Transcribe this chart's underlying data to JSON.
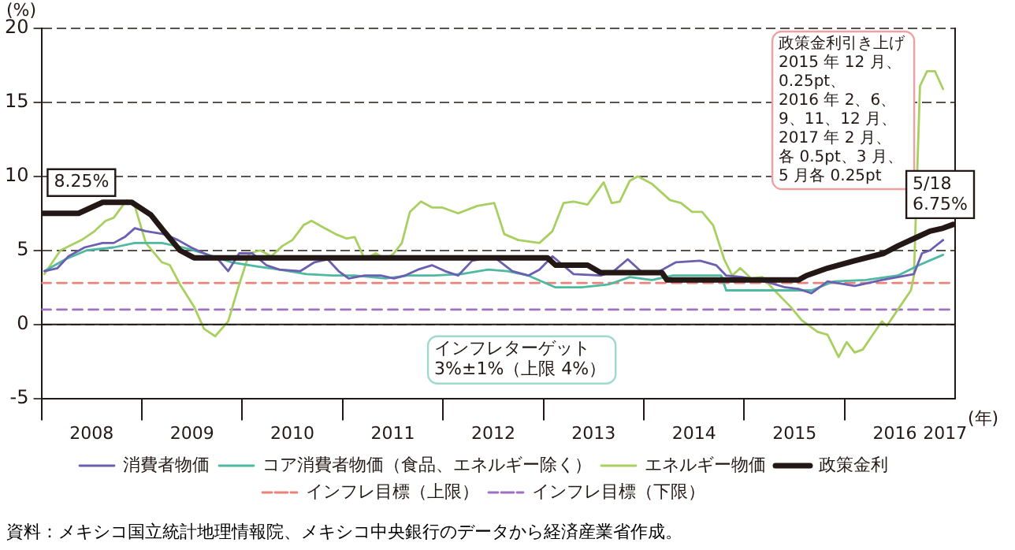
{
  "chart_data": {
    "type": "line",
    "ylabel": "(%)",
    "xlabel": "(年)",
    "xlim": [
      2008,
      2017.1
    ],
    "ylim": [
      -5,
      20
    ],
    "yticks": [
      -5,
      0,
      5,
      10,
      15,
      20
    ],
    "xticks": [
      {
        "value": 2008,
        "label": null
      },
      {
        "value": 2008.5,
        "label": "2008"
      },
      {
        "value": 2009,
        "label": null
      },
      {
        "value": 2009.5,
        "label": "2009"
      },
      {
        "value": 2010,
        "label": null
      },
      {
        "value": 2010.5,
        "label": "2010"
      },
      {
        "value": 2011,
        "label": null
      },
      {
        "value": 2011.5,
        "label": "2011"
      },
      {
        "value": 2012,
        "label": null
      },
      {
        "value": 2012.5,
        "label": "2012"
      },
      {
        "value": 2013,
        "label": null
      },
      {
        "value": 2013.5,
        "label": "2013"
      },
      {
        "value": 2014,
        "label": null
      },
      {
        "value": 2014.5,
        "label": "2014"
      },
      {
        "value": 2015,
        "label": null
      },
      {
        "value": 2015.5,
        "label": "2015"
      },
      {
        "value": 2016,
        "label": null
      },
      {
        "value": 2016.5,
        "label": "2016"
      },
      {
        "value": 2017,
        "label": "2017"
      }
    ],
    "grid": "y",
    "legend": "bottom",
    "marker": "none",
    "series": [
      {
        "name": "消費者物価",
        "color": "#6a5fb0",
        "x": [
          2008.03,
          2008.16,
          2008.27,
          2008.43,
          2008.61,
          2008.72,
          2008.83,
          2008.93,
          2009.04,
          2009.22,
          2009.36,
          2009.49,
          2009.62,
          2009.76,
          2009.86,
          2009.97,
          2010.1,
          2010.24,
          2010.37,
          2010.58,
          2010.72,
          2010.85,
          2010.96,
          2011.06,
          2011.22,
          2011.38,
          2011.51,
          2011.62,
          2011.75,
          2011.89,
          2012.02,
          2012.15,
          2012.29,
          2012.5,
          2012.69,
          2012.85,
          2012.96,
          2013.09,
          2013.3,
          2013.57,
          2013.7,
          2013.84,
          2014.0,
          2014.16,
          2014.32,
          2014.56,
          2014.72,
          2014.82,
          2014.98,
          2015.16,
          2015.41,
          2015.54,
          2015.67,
          2015.83,
          2016.1,
          2016.37,
          2016.53,
          2016.69,
          2016.77,
          2016.85,
          2016.98
        ],
        "values": [
          3.6,
          3.8,
          4.6,
          5.2,
          5.5,
          5.5,
          5.9,
          6.5,
          6.3,
          6.1,
          5.7,
          5.2,
          4.8,
          4.4,
          3.6,
          4.8,
          4.8,
          4.0,
          3.7,
          3.6,
          4.2,
          4.4,
          3.6,
          3.1,
          3.3,
          3.3,
          3.1,
          3.3,
          3.7,
          4.0,
          3.6,
          3.3,
          4.3,
          4.6,
          3.6,
          3.3,
          3.7,
          4.6,
          3.4,
          3.3,
          3.6,
          4.4,
          3.4,
          3.6,
          4.2,
          4.3,
          4.0,
          3.3,
          3.2,
          3.0,
          2.5,
          2.4,
          2.1,
          2.9,
          2.6,
          3.0,
          3.2,
          3.4,
          4.8,
          5.0,
          5.7
        ]
      },
      {
        "name": "コア消費者物価（食品、エネルギー除く）",
        "color": "#4fb8a0",
        "x": [
          2008.03,
          2008.24,
          2008.45,
          2008.72,
          2008.93,
          2009.2,
          2009.41,
          2009.62,
          2009.89,
          2010.16,
          2010.37,
          2010.64,
          2010.9,
          2011.12,
          2011.43,
          2011.65,
          2011.91,
          2012.18,
          2012.45,
          2012.64,
          2012.85,
          2013.12,
          2013.38,
          2013.65,
          2013.86,
          2014.08,
          2014.29,
          2014.56,
          2014.77,
          2014.82,
          2015.03,
          2015.25,
          2015.46,
          2015.67,
          2015.89,
          2016.21,
          2016.53,
          2016.74,
          2016.98
        ],
        "values": [
          3.6,
          4.4,
          5.0,
          5.2,
          5.5,
          5.5,
          5.2,
          4.8,
          4.2,
          3.9,
          3.7,
          3.4,
          3.3,
          3.3,
          3.1,
          3.3,
          3.3,
          3.4,
          3.7,
          3.6,
          3.3,
          2.5,
          2.5,
          2.7,
          3.2,
          3.0,
          3.3,
          3.3,
          3.3,
          2.3,
          2.3,
          2.3,
          2.3,
          2.3,
          2.9,
          3.0,
          3.3,
          4.0,
          4.7
        ]
      },
      {
        "name": "エネルギー物価",
        "color": "#a8d060",
        "x": [
          2008.03,
          2008.19,
          2008.4,
          2008.53,
          2008.64,
          2008.72,
          2008.85,
          2008.93,
          2009.04,
          2009.2,
          2009.28,
          2009.38,
          2009.52,
          2009.62,
          2009.73,
          2009.86,
          2009.97,
          2010.07,
          2010.18,
          2010.29,
          2010.4,
          2010.5,
          2010.61,
          2010.69,
          2010.82,
          2010.93,
          2011.04,
          2011.12,
          2011.22,
          2011.33,
          2011.43,
          2011.51,
          2011.59,
          2011.67,
          2011.78,
          2011.89,
          2011.99,
          2012.15,
          2012.34,
          2012.51,
          2012.61,
          2012.75,
          2012.96,
          2013.09,
          2013.2,
          2013.3,
          2013.44,
          2013.6,
          2013.68,
          2013.76,
          2013.86,
          2013.94,
          2014.08,
          2014.26,
          2014.37,
          2014.48,
          2014.58,
          2014.69,
          2014.8,
          2014.88,
          2014.96,
          2015.07,
          2015.18,
          2015.3,
          2015.46,
          2015.57,
          2015.73,
          2015.83,
          2015.94,
          2016.02,
          2016.1,
          2016.18,
          2016.26,
          2016.37,
          2016.42,
          2016.53,
          2016.66,
          2016.69,
          2016.75,
          2016.82,
          2016.9,
          2016.98
        ],
        "values": [
          3.4,
          5.0,
          5.7,
          6.3,
          7.0,
          7.2,
          8.4,
          8.0,
          5.5,
          4.2,
          4.0,
          2.7,
          1.2,
          -0.3,
          -0.8,
          0.2,
          2.7,
          4.8,
          5.0,
          4.6,
          5.3,
          5.7,
          6.7,
          7.0,
          6.5,
          6.1,
          5.8,
          5.9,
          4.4,
          4.8,
          4.4,
          4.8,
          5.5,
          7.6,
          8.3,
          7.9,
          7.9,
          7.5,
          8.0,
          8.2,
          6.1,
          5.7,
          5.5,
          6.3,
          8.2,
          8.3,
          8.1,
          9.6,
          8.2,
          8.3,
          9.7,
          10.0,
          9.5,
          8.4,
          8.2,
          7.6,
          7.6,
          6.7,
          4.4,
          3.3,
          3.8,
          3.1,
          3.2,
          2.3,
          1.2,
          0.3,
          -0.5,
          -0.7,
          -2.2,
          -1.2,
          -1.9,
          -1.7,
          -0.9,
          0.2,
          -0.1,
          1.0,
          2.3,
          3.3,
          16.1,
          17.1,
          17.1,
          15.9
        ]
      },
      {
        "name": "政策金利",
        "color": "#231815",
        "x": [
          2008.0,
          2008.37,
          2008.61,
          2008.9,
          2009.09,
          2009.22,
          2009.38,
          2009.52,
          2013.04,
          2013.12,
          2013.44,
          2013.57,
          2014.18,
          2014.23,
          2015.54,
          2015.62,
          2015.83,
          2016.1,
          2016.39,
          2016.53,
          2016.69,
          2016.85,
          2016.98,
          2017.08
        ],
        "values": [
          7.5,
          7.5,
          8.25,
          8.25,
          7.4,
          6.3,
          5.0,
          4.5,
          4.5,
          4.0,
          4.0,
          3.5,
          3.5,
          3.0,
          3.0,
          3.3,
          3.8,
          4.3,
          4.8,
          5.3,
          5.8,
          6.3,
          6.5,
          6.75
        ]
      },
      {
        "name": "インフレ目標（上限）",
        "color": "#e8827a",
        "line_style": "dashed",
        "x": [
          2008,
          2017.1
        ],
        "values": [
          2.8,
          2.8
        ]
      },
      {
        "name": "インフレ目標（下限）",
        "color": "#a070c0",
        "line_style": "dashed",
        "x": [
          2008,
          2017.1
        ],
        "values": [
          1.0,
          1.0
        ]
      }
    ],
    "annotations": [
      {
        "text": "8.25%",
        "x": 2008.65,
        "y": 8.25
      },
      {
        "text": "5/18\n6.75%",
        "x": 2017.08,
        "y": 6.75
      },
      "政策金利引き上げ2015 年 12 月、0.25pt、2016 年 2、6、9、11、12 月、2017 年 2 月、各 0.5pt、3 月、5 月各 0.25pt",
      "インフレターゲット\n3%±1%（上限 4%）",
      "資料：メキシコ国立統計地理情報院、メキシコ中央銀行のデータから経済産業省作成。"
    ]
  }
}
